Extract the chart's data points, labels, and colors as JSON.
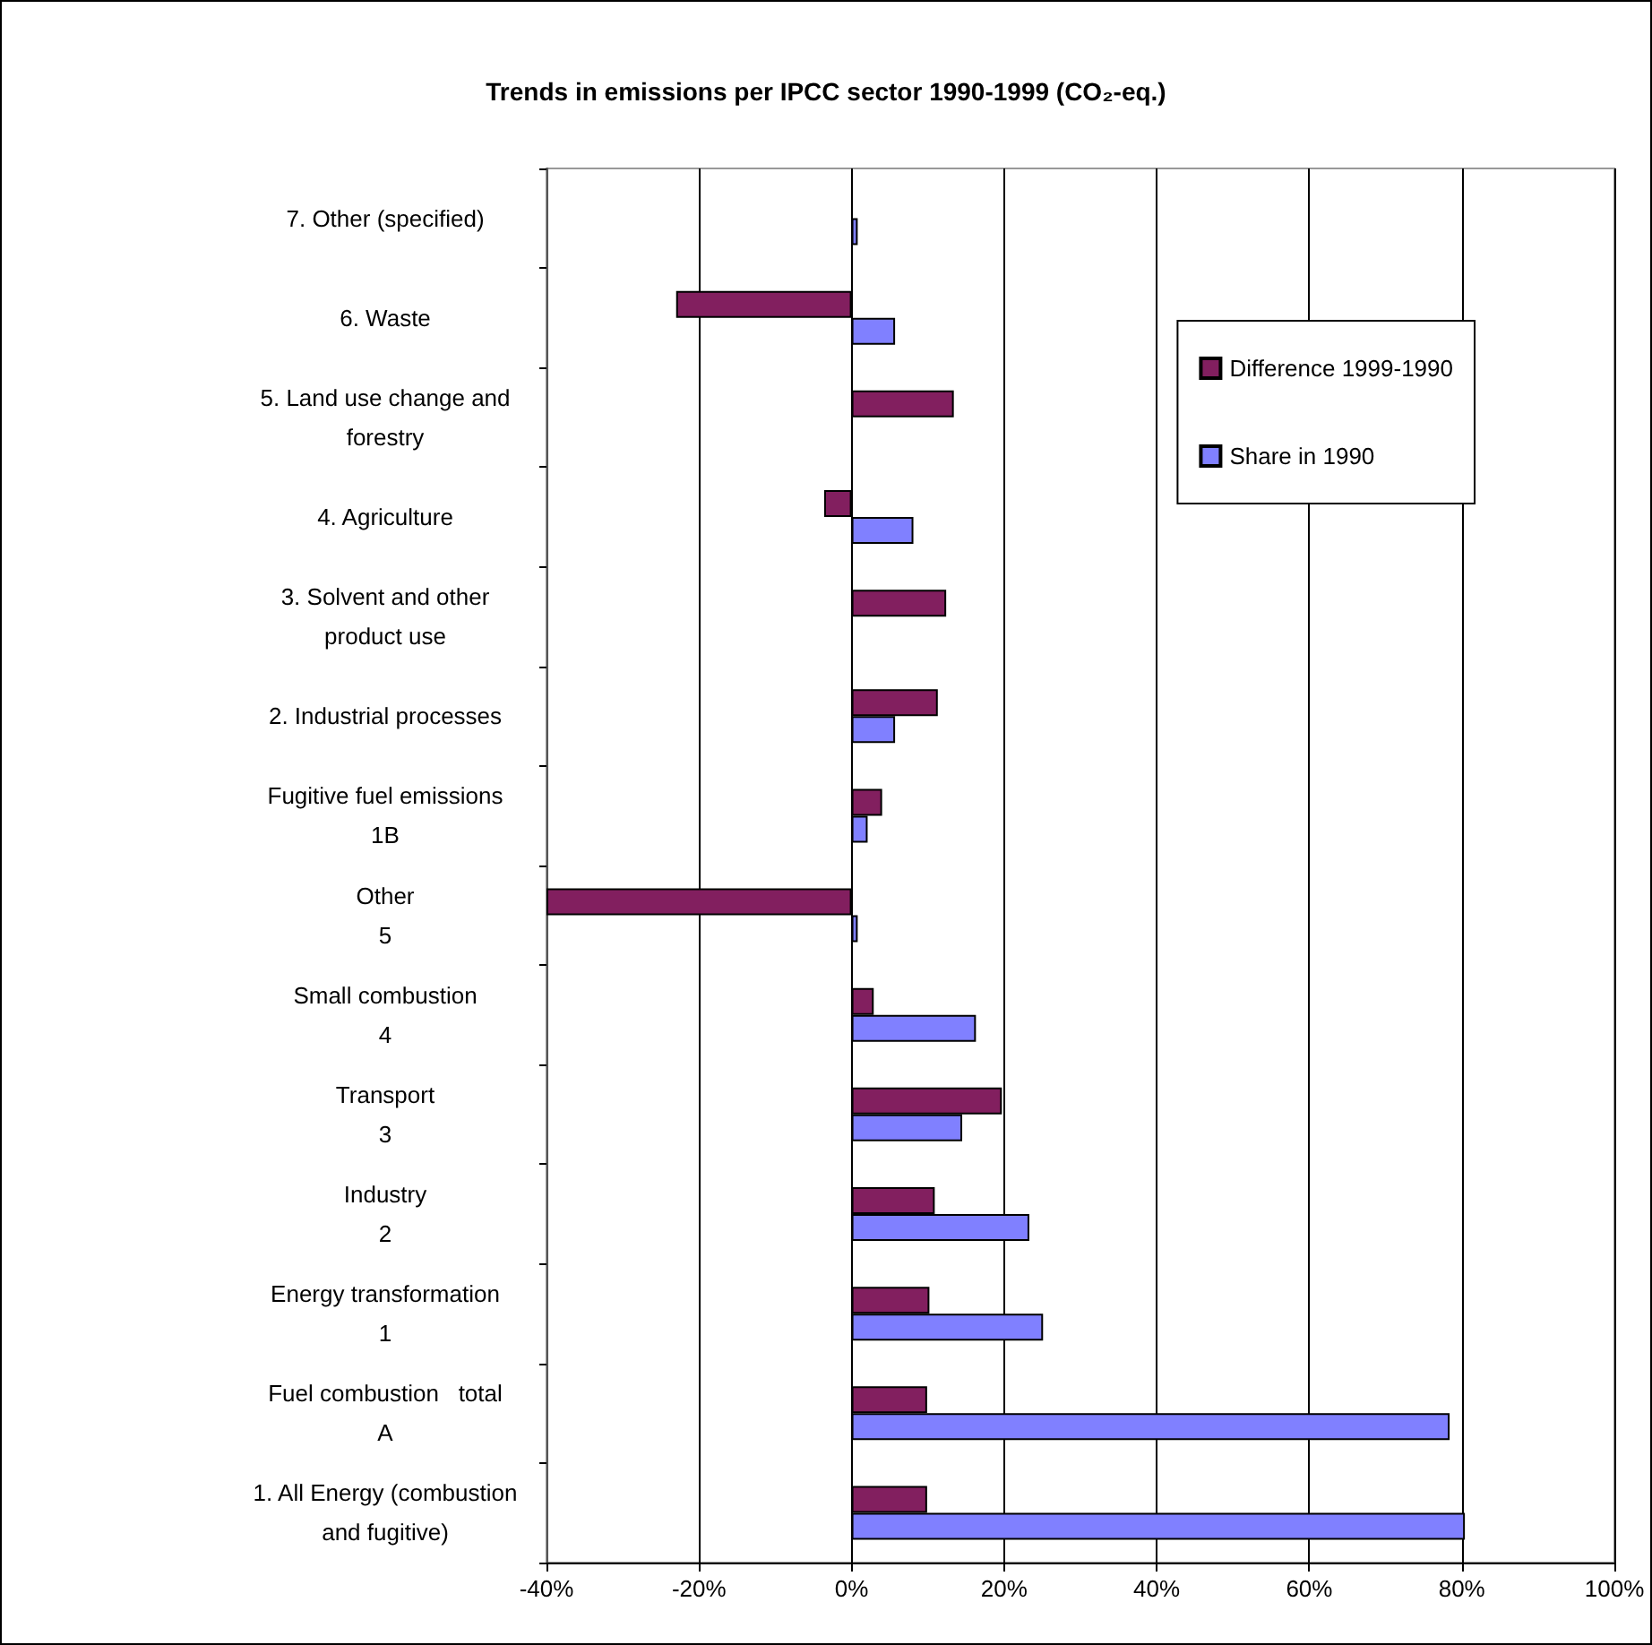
{
  "chart_data": {
    "type": "bar",
    "orientation": "horizontal",
    "title": "Trends in emissions per IPCC sector 1990-1999 (CO₂-eq.)",
    "categories": [
      "7. Other (specified)",
      "6. Waste",
      "5. Land use change and\nforestry",
      "4. Agriculture",
      "3. Solvent and other\nproduct use",
      "2. Industrial processes",
      "Fugitive fuel emissions\n1B",
      "Other\n5",
      "Small combustion\n4",
      "Transport\n3",
      "Industry\n2",
      "Energy transformation\n1",
      "Fuel combustion   total\nA",
      "1. All Energy (combustion\nand fugitive)"
    ],
    "series": [
      {
        "name": "Difference 1999-1990",
        "color": "#821f5f",
        "values": [
          null,
          -23,
          13.4,
          -3.6,
          12.4,
          11.3,
          4.0,
          -40,
          2.9,
          19.7,
          10.9,
          10.2,
          9.9,
          9.9
        ]
      },
      {
        "name": "Share in 1990",
        "color": "#8080ff",
        "values": [
          0.8,
          5.7,
          null,
          8.1,
          null,
          5.7,
          2.1,
          0.8,
          16.3,
          14.5,
          23.3,
          25.1,
          78.4,
          80.4
        ]
      }
    ],
    "xlim": [
      -40,
      100
    ],
    "xticks": [
      {
        "value": -40,
        "label": "-40%"
      },
      {
        "value": -20,
        "label": "-20%"
      },
      {
        "value": 0,
        "label": "0%"
      },
      {
        "value": 20,
        "label": "20%"
      },
      {
        "value": 40,
        "label": "40%"
      },
      {
        "value": 60,
        "label": "60%"
      },
      {
        "value": 80,
        "label": "80%"
      },
      {
        "value": 100,
        "label": "100%"
      }
    ],
    "grid": "x",
    "legend": "top right"
  }
}
